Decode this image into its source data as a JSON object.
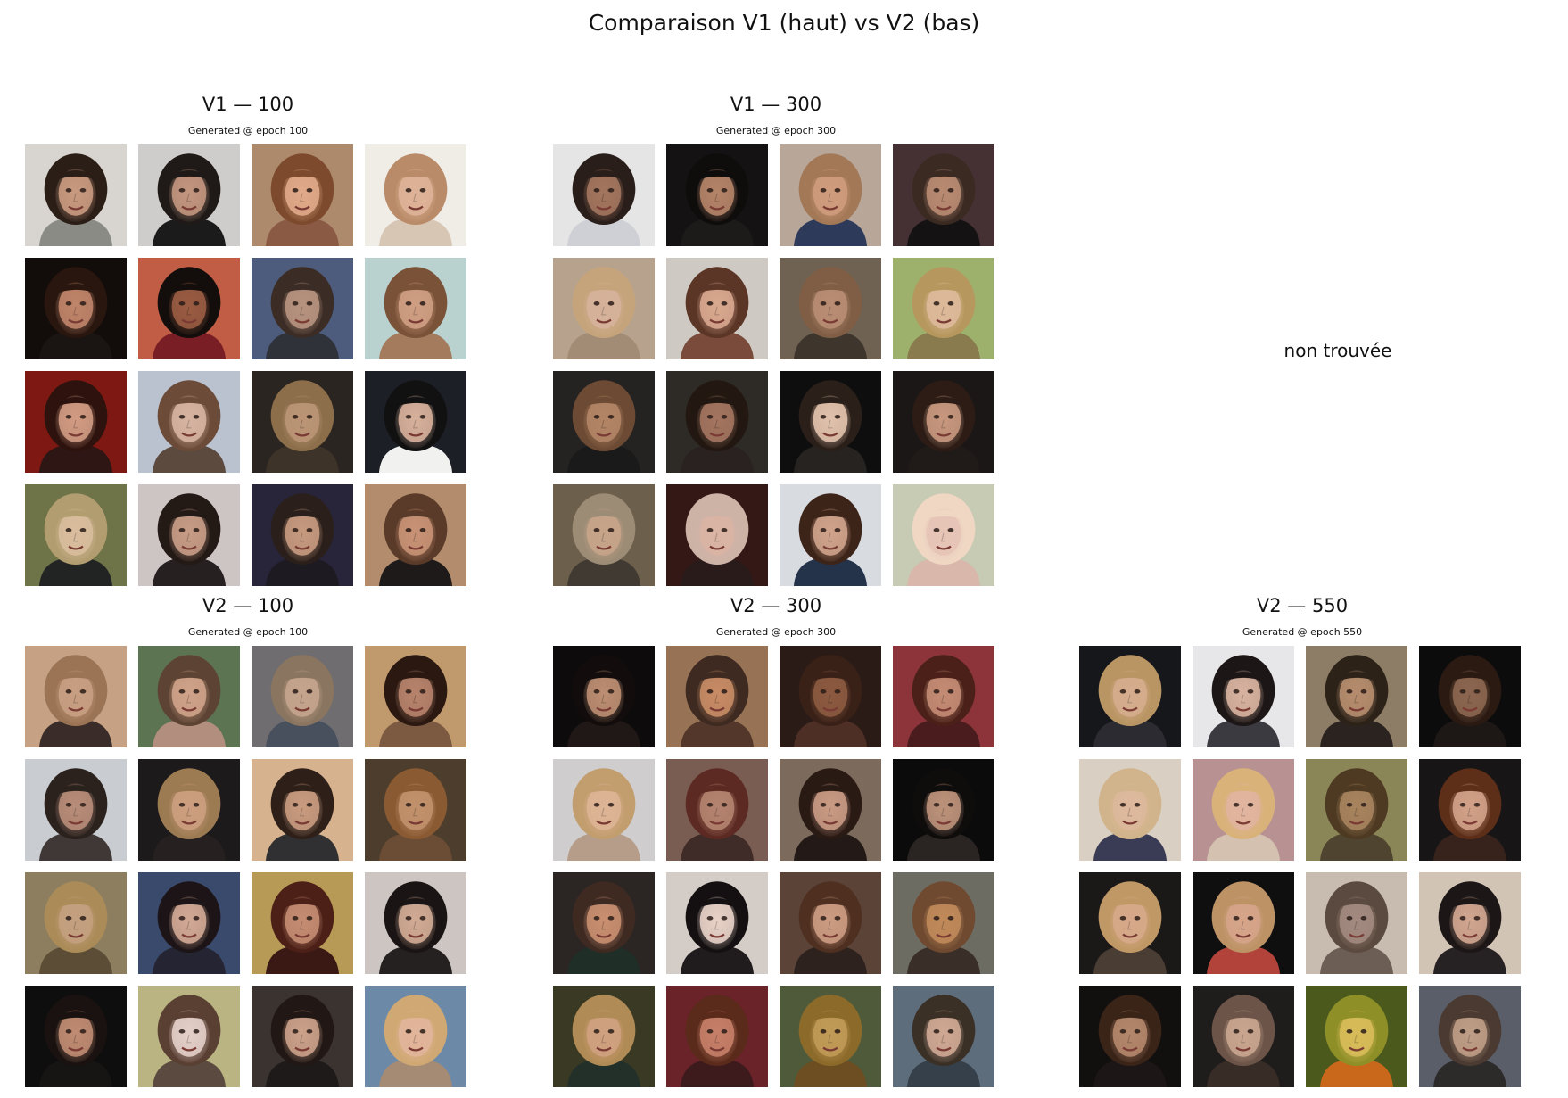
{
  "figure": {
    "title": "Comparaison V1 (haut) vs V2 (bas)",
    "missing_label": "non trouvée"
  },
  "panels": [
    {
      "id": "v1-100",
      "title": "V1 — 100",
      "subtitle": "Generated @ epoch 100",
      "faces": [
        {
          "skin": "#c99a80",
          "hair": "#2b1e17",
          "bg": "#d8d4cf",
          "shirt": "#8b8b86"
        },
        {
          "skin": "#c3967f",
          "hair": "#1f1a18",
          "bg": "#cfcdcb",
          "shirt": "#1b1b1c"
        },
        {
          "skin": "#e0aa89",
          "hair": "#7d4a2d",
          "bg": "#ae8a6c",
          "shirt": "#8a5a45"
        },
        {
          "skin": "#deb398",
          "hair": "#b98b68",
          "bg": "#f0ece6",
          "shirt": "#d8c6b5"
        },
        {
          "skin": "#c0856a",
          "hair": "#29160f",
          "bg": "#120c0a",
          "shirt": "#1a1513"
        },
        {
          "skin": "#9a5c43",
          "hair": "#130d0b",
          "bg": "#c15d45",
          "shirt": "#7a1e25"
        },
        {
          "skin": "#b7937f",
          "hair": "#3b2c25",
          "bg": "#4d5c7c",
          "shirt": "#30323a"
        },
        {
          "skin": "#cf9f83",
          "hair": "#7a5237",
          "bg": "#b9d1cf",
          "shirt": "#a47b5d"
        },
        {
          "skin": "#d19b83",
          "hair": "#2d120d",
          "bg": "#7d1812",
          "shirt": "#2d1614"
        },
        {
          "skin": "#d6b4a1",
          "hair": "#6c4c39",
          "bg": "#bac2d0",
          "shirt": "#5c4a3f"
        },
        {
          "skin": "#ba9576",
          "hair": "#8c6e4a",
          "bg": "#2a2520",
          "shirt": "#3d3328"
        },
        {
          "skin": "#d7b09b",
          "hair": "#111112",
          "bg": "#1d1f27",
          "shirt": "#f1f1f0"
        },
        {
          "skin": "#d8bc9d",
          "hair": "#b29d70",
          "bg": "#6e7448",
          "shirt": "#222423"
        },
        {
          "skin": "#c89c86",
          "hair": "#231915",
          "bg": "#cdc4c4",
          "shirt": "#262020"
        },
        {
          "skin": "#c79a7f",
          "hair": "#2a1f1a",
          "bg": "#28253a",
          "shirt": "#1d1a22"
        },
        {
          "skin": "#c89276",
          "hair": "#5a3a28",
          "bg": "#b28c6c",
          "shirt": "#1e1a19"
        }
      ]
    },
    {
      "id": "v1-300",
      "title": "V1 — 300",
      "subtitle": "Generated @ epoch 300",
      "faces": [
        {
          "skin": "#a3765e",
          "hair": "#2a1e1a",
          "bg": "#e6e5e6",
          "shirt": "#cfd0d5"
        },
        {
          "skin": "#b58468",
          "hair": "#0f0c0c",
          "bg": "#151213",
          "shirt": "#1d1a1a"
        },
        {
          "skin": "#cf9b7d",
          "hair": "#a37856",
          "bg": "#b8a699",
          "shirt": "#2e3a5a"
        },
        {
          "skin": "#b98b72",
          "hair": "#3b2a22",
          "bg": "#453033",
          "shirt": "#141213"
        },
        {
          "skin": "#d5b19a",
          "hair": "#c6a47b",
          "bg": "#b7a38d",
          "shirt": "#a28c75"
        },
        {
          "skin": "#d8a88f",
          "hair": "#5b3526",
          "bg": "#cfc9c4",
          "shirt": "#7a4b3a"
        },
        {
          "skin": "#b88d73",
          "hair": "#7f5e45",
          "bg": "#6f6252",
          "shirt": "#3e352d"
        },
        {
          "skin": "#ddb99a",
          "hair": "#b6985e",
          "bg": "#9db06c",
          "shirt": "#8a7b4e"
        },
        {
          "skin": "#b38566",
          "hair": "#6c4a33",
          "bg": "#252222",
          "shirt": "#1a1a1a"
        },
        {
          "skin": "#a47660",
          "hair": "#221711",
          "bg": "#2e2a25",
          "shirt": "#2a2220"
        },
        {
          "skin": "#e1c2ac",
          "hair": "#2b1f19",
          "bg": "#0f0e0f",
          "shirt": "#262321"
        },
        {
          "skin": "#c8987e",
          "hair": "#2c1c15",
          "bg": "#1a1716",
          "shirt": "#201a18"
        },
        {
          "skin": "#c7a48a",
          "hair": "#9c8b75",
          "bg": "#6c5f4b",
          "shirt": "#403a33"
        },
        {
          "skin": "#d9b3a4",
          "hair": "#cdb3a6",
          "bg": "#341816",
          "shirt": "#2a1b1b"
        },
        {
          "skin": "#cfa38c",
          "hair": "#3d2418",
          "bg": "#d8dbe0",
          "shirt": "#24324a"
        },
        {
          "skin": "#e6c3b6",
          "hair": "#efd7c4",
          "bg": "#c7cbb4",
          "shirt": "#d9b7aa"
        }
      ]
    },
    {
      "id": "v2-100",
      "title": "V2 — 100",
      "subtitle": "Generated @ epoch 100",
      "faces": [
        {
          "skin": "#c89f82",
          "hair": "#9a7455",
          "bg": "#c6a184",
          "shirt": "#3a2c28"
        },
        {
          "skin": "#cfa389",
          "hair": "#5d4333",
          "bg": "#5d7452",
          "shirt": "#b18e7e"
        },
        {
          "skin": "#c4a48d",
          "hair": "#8a7560",
          "bg": "#6f6d70",
          "shirt": "#48505e"
        },
        {
          "skin": "#b7836b",
          "hair": "#2a1811",
          "bg": "#c09a6c",
          "shirt": "#7c5a42"
        },
        {
          "skin": "#b88d79",
          "hair": "#2b221e",
          "bg": "#c9ccd0",
          "shirt": "#3f3836"
        },
        {
          "skin": "#cc9f7f",
          "hair": "#9c7a52",
          "bg": "#1c1a1a",
          "shirt": "#262120"
        },
        {
          "skin": "#c99b7f",
          "hair": "#2e2019",
          "bg": "#d6b28e",
          "shirt": "#303033"
        },
        {
          "skin": "#c1916d",
          "hair": "#8a5b33",
          "bg": "#4d3d2c",
          "shirt": "#6b4d36"
        },
        {
          "skin": "#c3a07f",
          "hair": "#ab8b58",
          "bg": "#8d7e60",
          "shirt": "#5b4d36"
        },
        {
          "skin": "#d2a895",
          "hair": "#1c1416",
          "bg": "#3a4a6c",
          "shirt": "#242433"
        },
        {
          "skin": "#c48d72",
          "hair": "#4c2017",
          "bg": "#b69a56",
          "shirt": "#3a1914"
        },
        {
          "skin": "#d2ab95",
          "hair": "#1a1414",
          "bg": "#ccc5c2",
          "shirt": "#262121"
        },
        {
          "skin": "#c08c72",
          "hair": "#1a1210",
          "bg": "#0f0e0e",
          "shirt": "#171414"
        },
        {
          "skin": "#e3cfc9",
          "hair": "#5a3f33",
          "bg": "#b9b481",
          "shirt": "#5b4a3f"
        },
        {
          "skin": "#cba18a",
          "hair": "#211714",
          "bg": "#3b3330",
          "shirt": "#1d1a19"
        },
        {
          "skin": "#e1b59a",
          "hair": "#d0a873",
          "bg": "#6d89a8",
          "shirt": "#a58a74"
        }
      ]
    },
    {
      "id": "v2-300",
      "title": "V2 — 300",
      "subtitle": "Generated @ epoch 300",
      "faces": [
        {
          "skin": "#bd8e72",
          "hair": "#120d0c",
          "bg": "#0d0b0b",
          "shirt": "#201816"
        },
        {
          "skin": "#c88c66",
          "hair": "#3e2a20",
          "bg": "#977254",
          "shirt": "#52372a"
        },
        {
          "skin": "#8c5a40",
          "hair": "#3a2118",
          "bg": "#2a1b17",
          "shirt": "#4e2f26"
        },
        {
          "skin": "#c48c74",
          "hair": "#4a2018",
          "bg": "#8c343a",
          "shirt": "#4a1c1e"
        },
        {
          "skin": "#ddb495",
          "hair": "#c29d6e",
          "bg": "#cfcdcd",
          "shirt": "#b59d8a"
        },
        {
          "skin": "#b58470",
          "hair": "#5c2a22",
          "bg": "#7a5d52",
          "shirt": "#3f2b27"
        },
        {
          "skin": "#c99a84",
          "hair": "#2a1a14",
          "bg": "#7c6a5c",
          "shirt": "#231a17"
        },
        {
          "skin": "#bd927a",
          "hair": "#0f0c0c",
          "bg": "#0b0b0b",
          "shirt": "#2a2422"
        },
        {
          "skin": "#c98f70",
          "hair": "#3f2a22",
          "bg": "#2b2523",
          "shirt": "#202e28"
        },
        {
          "skin": "#e8d2c8",
          "hair": "#141011",
          "bg": "#d4ccc7",
          "shirt": "#201c1e"
        },
        {
          "skin": "#cc9b82",
          "hair": "#4e2f20",
          "bg": "#5b4338",
          "shirt": "#2d221d"
        },
        {
          "skin": "#c08a5a",
          "hair": "#6f4a30",
          "bg": "#6d6c62",
          "shirt": "#3a2e28"
        },
        {
          "skin": "#cfa17f",
          "hair": "#b18b55",
          "bg": "#3a3a24",
          "shirt": "#23302a"
        },
        {
          "skin": "#c77f68",
          "hair": "#5a2a1b",
          "bg": "#6a2328",
          "shirt": "#3d1b1c"
        },
        {
          "skin": "#c09a56",
          "hair": "#8c6a2a",
          "bg": "#4e5a3a",
          "shirt": "#6d4e22"
        },
        {
          "skin": "#cfa894",
          "hair": "#3a3026",
          "bg": "#5e6d7c",
          "shirt": "#35404a"
        }
      ]
    },
    {
      "id": "v2-550",
      "title": "V2 — 550",
      "subtitle": "Generated @ epoch 550",
      "faces": [
        {
          "skin": "#d5ad8e",
          "hair": "#b89563",
          "bg": "#15171b",
          "shirt": "#2c2b31"
        },
        {
          "skin": "#d8b2a0",
          "hair": "#1c1716",
          "bg": "#e7e7e9",
          "shirt": "#3a3a40"
        },
        {
          "skin": "#b68d6e",
          "hair": "#2c2218",
          "bg": "#8e7d66",
          "shirt": "#2a2320"
        },
        {
          "skin": "#8c6650",
          "hair": "#2a1a12",
          "bg": "#0c0c0d",
          "shirt": "#1d1816"
        },
        {
          "skin": "#ddb89c",
          "hair": "#d1b48b",
          "bg": "#d9cfc2",
          "shirt": "#3a3b55"
        },
        {
          "skin": "#e0b49e",
          "hair": "#d9b27a",
          "bg": "#b89292",
          "shirt": "#d4c1b0"
        },
        {
          "skin": "#a7845e",
          "hair": "#4e3a22",
          "bg": "#8b8657",
          "shirt": "#4e4430"
        },
        {
          "skin": "#d1a188",
          "hair": "#5d2e18",
          "bg": "#181516",
          "shirt": "#38231c"
        },
        {
          "skin": "#d6a989",
          "hair": "#c09865",
          "bg": "#1b1818",
          "shirt": "#4a3d34"
        },
        {
          "skin": "#d5a48a",
          "hair": "#bd9366",
          "bg": "#0f0f10",
          "shirt": "#b2433a"
        },
        {
          "skin": "#a38a80",
          "hair": "#5b4a3f",
          "bg": "#c8bcb0",
          "shirt": "#6d5e55"
        },
        {
          "skin": "#d1a690",
          "hair": "#1c1616",
          "bg": "#d2c4b5",
          "shirt": "#262122"
        },
        {
          "skin": "#b4876c",
          "hair": "#3a2418",
          "bg": "#120f0f",
          "shirt": "#1c1716"
        },
        {
          "skin": "#c9a58f",
          "hair": "#6c5548",
          "bg": "#1f1c1c",
          "shirt": "#382c26"
        },
        {
          "skin": "#d8bb5a",
          "hair": "#8f8f28",
          "bg": "#4b5a1c",
          "shirt": "#c9681b"
        },
        {
          "skin": "#bf9d86",
          "hair": "#4a3a31",
          "bg": "#5a5e69",
          "shirt": "#2d2a2a"
        }
      ]
    }
  ]
}
